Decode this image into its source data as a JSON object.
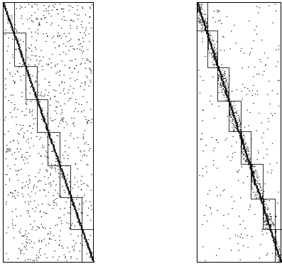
{
  "figure": {
    "panels": [
      {
        "name": "left-matrix",
        "block_count": 8,
        "scatter_density": "high",
        "diagonal_band": "dense"
      },
      {
        "name": "right-matrix",
        "block_count": 9,
        "scatter_density": "low",
        "diagonal_band": "dense-within-blocks"
      }
    ],
    "colors": {
      "ink": "#000000",
      "background": "#ffffff"
    }
  }
}
